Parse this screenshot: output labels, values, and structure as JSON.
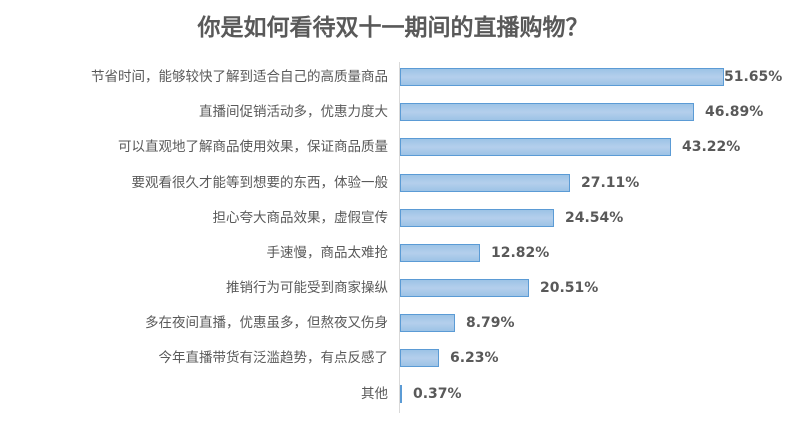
{
  "chart_data": {
    "type": "bar",
    "orientation": "horizontal",
    "title": "你是如何看待双十一期间的直播购物？",
    "xlabel": "",
    "ylabel": "",
    "grid": false,
    "legend": null,
    "categories": [
      "节省时间，能够较快了解到适合自己的高质量商品",
      "直播间促销活动多，优惠力度大",
      "可以直观地了解商品使用效果，保证商品质量",
      "要观看很久才能等到想要的东西，体验一般",
      "担心夸大商品效果，虚假宣传",
      "手速慢，商品太难抢",
      "推销行为可能受到商家操纵",
      "多在夜间直播，优惠虽多，但熬夜又伤身",
      "今年直播带货有泛滥趋势，有点反感了",
      "其他"
    ],
    "values": [
      51.65,
      46.89,
      43.22,
      27.11,
      24.54,
      12.82,
      20.51,
      8.79,
      6.23,
      0.37
    ],
    "value_labels": [
      "51.65%",
      "46.89%",
      "43.22%",
      "27.11%",
      "24.54%",
      "12.82%",
      "20.51%",
      "8.79%",
      "6.23%",
      "0.37%"
    ],
    "unit": "%",
    "colors": {
      "bar_fill": "#a9c6e8",
      "bar_border": "#5b9bd5",
      "text": "#595959",
      "axis": "#d9d9d9"
    }
  },
  "title": "你是如何看待双十一期间的直播购物？",
  "rows": [
    {
      "label": "节省时间，能够较快了解到适合自己的高质量商品",
      "value": "51.65%"
    },
    {
      "label": "直播间促销活动多，优惠力度大",
      "value": "46.89%"
    },
    {
      "label": "可以直观地了解商品使用效果，保证商品质量",
      "value": "43.22%"
    },
    {
      "label": "要观看很久才能等到想要的东西，体验一般",
      "value": "27.11%"
    },
    {
      "label": "担心夸大商品效果，虚假宣传",
      "value": "24.54%"
    },
    {
      "label": "手速慢，商品太难抢",
      "value": "12.82%"
    },
    {
      "label": "推销行为可能受到商家操纵",
      "value": "20.51%"
    },
    {
      "label": "多在夜间直播，优惠虽多，但熬夜又伤身",
      "value": "8.79%"
    },
    {
      "label": "今年直播带货有泛滥趋势，有点反感了",
      "value": "6.23%"
    },
    {
      "label": "其他",
      "value": "0.37%"
    }
  ]
}
